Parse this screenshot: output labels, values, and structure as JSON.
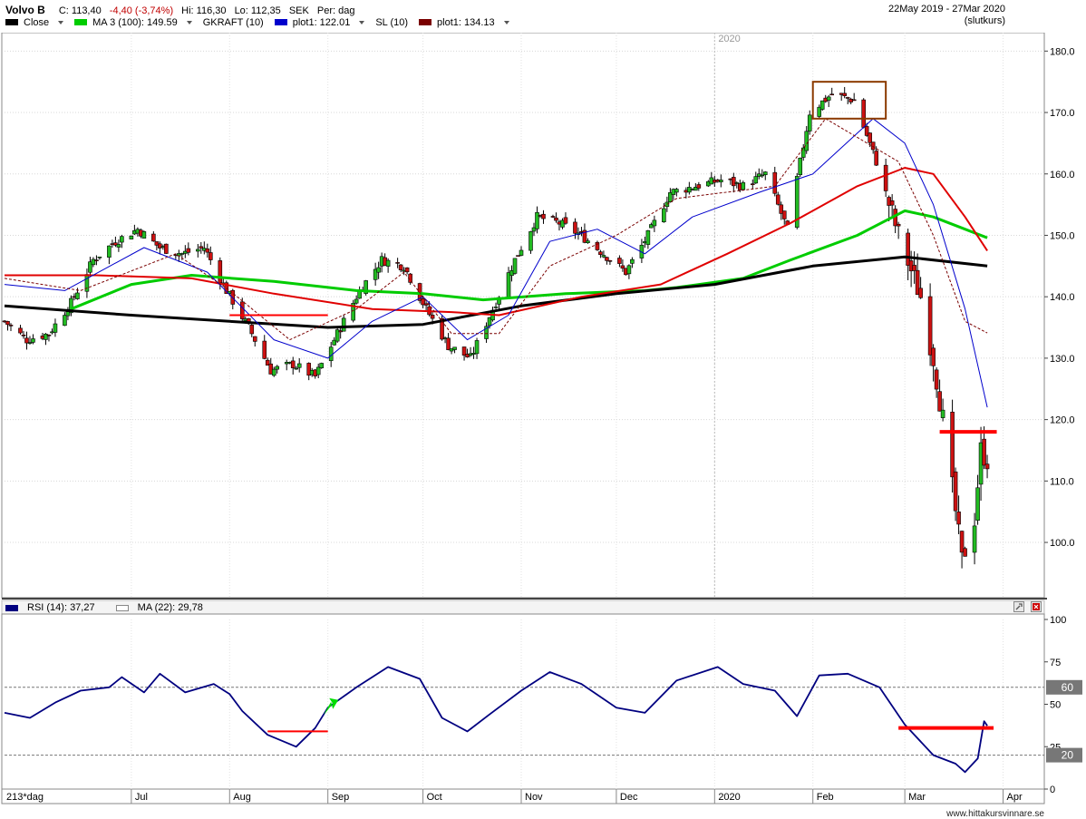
{
  "header": {
    "symbol": "Volvo B",
    "close": "C: 113,40",
    "change": "-4,40 (-3,74%)",
    "hi": "Hi: 116,30",
    "lo": "Lo: 112,35",
    "currency": "SEK",
    "period": "Per: dag",
    "daterange": "22May 2019 - 27Mar 2020",
    "pricetype": "(slutkurs)"
  },
  "legend": [
    {
      "label": "Close",
      "color": "#000000",
      "dropdown": true
    },
    {
      "label": "MA 3 (100): 149.59",
      "color": "#00cc00",
      "dropdown": true
    },
    {
      "label": "GKRAFT (10)",
      "color": "",
      "dropdown": false
    },
    {
      "label": "plot1: 122.01",
      "color": "#0000cc",
      "dropdown": true
    },
    {
      "label": "SL (10)",
      "color": "",
      "dropdown": false
    },
    {
      "label": "plot1: 134.13",
      "color": "#7a0000",
      "dropdown": true
    }
  ],
  "rsi_panel": {
    "label": "RSI (14): 37,27",
    "ma_label": "MA (22): 29,78",
    "line_color": "#000080",
    "levels": [
      60,
      20
    ]
  },
  "footer": {
    "bars": "213*dag",
    "watermark": "www.hittakursvinnare.se",
    "year_marker": "2020"
  },
  "chart_data": [
    {
      "type": "candlestick",
      "ylim": [
        91,
        183
      ],
      "yticks": [
        "100.0",
        "110.0",
        "120.0",
        "130.0",
        "140.0",
        "150.0",
        "160.0",
        "170.0",
        "180.0"
      ],
      "ytick_values": [
        100,
        110,
        120,
        130,
        140,
        150,
        160,
        170,
        180
      ],
      "xticks": [
        {
          "label": "Jul",
          "date": "2019-07-01"
        },
        {
          "label": "Aug",
          "date": "2019-08-01"
        },
        {
          "label": "Sep",
          "date": "2019-09-01"
        },
        {
          "label": "Oct",
          "date": "2019-10-01"
        },
        {
          "label": "Nov",
          "date": "2019-11-01"
        },
        {
          "label": "Dec",
          "date": "2019-12-01"
        },
        {
          "label": "2020",
          "date": "2020-01-01"
        },
        {
          "label": "Feb",
          "date": "2020-02-01"
        },
        {
          "label": "Mar",
          "date": "2020-03-01"
        },
        {
          "label": "Apr",
          "date": "2020-04-01"
        }
      ],
      "x_start": "2019-05-22",
      "x_end": "2020-04-14",
      "close_path": [
        [
          "2019-05-22",
          136
        ],
        [
          "2019-05-29",
          133
        ],
        [
          "2019-06-05",
          134
        ],
        [
          "2019-06-12",
          139
        ],
        [
          "2019-06-19",
          146
        ],
        [
          "2019-06-26",
          149
        ],
        [
          "2019-07-03",
          151
        ],
        [
          "2019-07-10",
          148
        ],
        [
          "2019-07-17",
          147
        ],
        [
          "2019-07-24",
          148
        ],
        [
          "2019-07-31",
          141
        ],
        [
          "2019-08-07",
          135
        ],
        [
          "2019-08-14",
          128
        ],
        [
          "2019-08-21",
          129
        ],
        [
          "2019-08-28",
          127
        ],
        [
          "2019-09-04",
          134
        ],
        [
          "2019-09-11",
          141
        ],
        [
          "2019-09-18",
          146
        ],
        [
          "2019-09-25",
          145
        ],
        [
          "2019-10-02",
          138
        ],
        [
          "2019-10-09",
          132
        ],
        [
          "2019-10-16",
          130
        ],
        [
          "2019-10-23",
          138
        ],
        [
          "2019-10-30",
          146
        ],
        [
          "2019-11-06",
          153
        ],
        [
          "2019-11-13",
          152
        ],
        [
          "2019-11-20",
          150
        ],
        [
          "2019-11-27",
          147
        ],
        [
          "2019-12-04",
          144
        ],
        [
          "2019-12-11",
          150
        ],
        [
          "2019-12-18",
          157
        ],
        [
          "2020-01-03",
          159
        ],
        [
          "2020-01-10",
          158
        ],
        [
          "2020-01-17",
          160
        ],
        [
          "2020-01-24",
          151
        ],
        [
          "2020-01-31",
          170
        ],
        [
          "2020-02-07",
          173
        ],
        [
          "2020-02-14",
          172
        ],
        [
          "2020-02-21",
          162
        ],
        [
          "2020-02-28",
          150
        ],
        [
          "2020-03-06",
          140
        ],
        [
          "2020-03-10",
          130
        ],
        [
          "2020-03-13",
          120
        ],
        [
          "2020-03-17",
          105
        ],
        [
          "2020-03-19",
          97
        ],
        [
          "2020-03-23",
          104
        ],
        [
          "2020-03-25",
          115
        ],
        [
          "2020-03-27",
          113.4
        ]
      ],
      "series": [
        {
          "name": "MA 3 (100): 149.59",
          "color": "#00cc00",
          "values": [
            [
              "2019-06-12",
              138
            ],
            [
              "2019-07-01",
              142
            ],
            [
              "2019-07-20",
              143.5
            ],
            [
              "2019-08-15",
              142.5
            ],
            [
              "2019-09-10",
              141
            ],
            [
              "2019-10-01",
              140.5
            ],
            [
              "2019-10-20",
              139.5
            ],
            [
              "2019-11-15",
              140.5
            ],
            [
              "2019-12-10",
              141
            ],
            [
              "2019-12-20",
              141.5
            ],
            [
              "2020-01-10",
              143
            ],
            [
              "2020-01-25",
              146
            ],
            [
              "2020-02-15",
              150
            ],
            [
              "2020-03-01",
              154
            ],
            [
              "2020-03-10",
              153
            ],
            [
              "2020-03-20",
              151
            ],
            [
              "2020-03-27",
              149.6
            ]
          ]
        },
        {
          "name": "",
          "color": "#000000",
          "values": [
            [
              "2019-05-22",
              138.5
            ],
            [
              "2019-07-01",
              137
            ],
            [
              "2019-08-01",
              136
            ],
            [
              "2019-09-01",
              135
            ],
            [
              "2019-10-01",
              135.5
            ],
            [
              "2019-11-01",
              138.5
            ],
            [
              "2019-12-01",
              140.5
            ],
            [
              "2020-01-01",
              142
            ],
            [
              "2020-02-01",
              145
            ],
            [
              "2020-03-01",
              146.5
            ],
            [
              "2020-03-27",
              145
            ]
          ]
        },
        {
          "name": "",
          "color": "#e00000",
          "values": [
            [
              "2019-05-22",
              143.5
            ],
            [
              "2019-06-20",
              143.5
            ],
            [
              "2019-07-20",
              143
            ],
            [
              "2019-08-15",
              140.5
            ],
            [
              "2019-09-15",
              138
            ],
            [
              "2019-10-10",
              137.5
            ],
            [
              "2019-10-25",
              137
            ],
            [
              "2019-11-20",
              140
            ],
            [
              "2019-12-15",
              142
            ],
            [
              "2020-01-05",
              147
            ],
            [
              "2020-01-25",
              152
            ],
            [
              "2020-02-15",
              158
            ],
            [
              "2020-03-01",
              161
            ],
            [
              "2020-03-10",
              160
            ],
            [
              "2020-03-20",
              153
            ],
            [
              "2020-03-27",
              147.5
            ]
          ]
        },
        {
          "name": "plot1: 122.01",
          "color": "#0000cc",
          "values": [
            [
              "2019-05-22",
              142
            ],
            [
              "2019-06-10",
              141
            ],
            [
              "2019-07-05",
              148
            ],
            [
              "2019-07-25",
              144
            ],
            [
              "2019-08-15",
              133
            ],
            [
              "2019-09-01",
              130
            ],
            [
              "2019-09-15",
              136
            ],
            [
              "2019-10-01",
              140
            ],
            [
              "2019-10-15",
              133
            ],
            [
              "2019-10-28",
              137
            ],
            [
              "2019-11-10",
              149
            ],
            [
              "2019-11-25",
              151
            ],
            [
              "2019-12-10",
              147
            ],
            [
              "2019-12-25",
              153
            ],
            [
              "2020-01-15",
              157
            ],
            [
              "2020-02-01",
              160
            ],
            [
              "2020-02-20",
              169
            ],
            [
              "2020-03-01",
              165
            ],
            [
              "2020-03-10",
              155
            ],
            [
              "2020-03-20",
              138
            ],
            [
              "2020-03-27",
              122
            ]
          ]
        },
        {
          "name": "plot1: 134.13",
          "color": "#7a0000",
          "dashed": true,
          "values": [
            [
              "2019-05-22",
              143
            ],
            [
              "2019-06-15",
              141
            ],
            [
              "2019-07-15",
              147
            ],
            [
              "2019-08-01",
              141
            ],
            [
              "2019-08-20",
              133
            ],
            [
              "2019-09-10",
              138
            ],
            [
              "2019-09-25",
              144
            ],
            [
              "2019-10-10",
              134
            ],
            [
              "2019-10-25",
              134
            ],
            [
              "2019-11-10",
              145
            ],
            [
              "2019-12-01",
              150
            ],
            [
              "2019-12-20",
              156
            ],
            [
              "2020-01-20",
              158
            ],
            [
              "2020-02-05",
              169
            ],
            [
              "2020-02-28",
              162
            ],
            [
              "2020-03-10",
              150
            ],
            [
              "2020-03-20",
              136
            ],
            [
              "2020-03-27",
              134.1
            ]
          ]
        }
      ],
      "annotations": [
        {
          "type": "box",
          "x1": "2020-02-01",
          "x2": "2020-02-24",
          "y1": 169,
          "y2": 175,
          "color": "#8b3a00"
        },
        {
          "type": "hline",
          "x1": "2020-03-12",
          "x2": "2020-03-30",
          "y": 118,
          "color": "#ff0000"
        },
        {
          "type": "hline",
          "x1": "2019-08-01",
          "x2": "2019-09-01",
          "y": 137,
          "color": "#ff0000"
        }
      ]
    },
    {
      "type": "line",
      "ylim": [
        0,
        100
      ],
      "yticks": [
        "0",
        "25",
        "50",
        "75",
        "100"
      ],
      "ytick_values": [
        0,
        25,
        50,
        75,
        100
      ],
      "levels": [
        60,
        20
      ],
      "series": [
        {
          "name": "RSI (14): 37,27",
          "color": "#000080",
          "values": [
            [
              "2019-05-22",
              45
            ],
            [
              "2019-05-30",
              42
            ],
            [
              "2019-06-07",
              51
            ],
            [
              "2019-06-15",
              58
            ],
            [
              "2019-06-24",
              60
            ],
            [
              "2019-06-28",
              66
            ],
            [
              "2019-07-05",
              57
            ],
            [
              "2019-07-10",
              68
            ],
            [
              "2019-07-18",
              57
            ],
            [
              "2019-07-27",
              62
            ],
            [
              "2019-08-01",
              56
            ],
            [
              "2019-08-05",
              46
            ],
            [
              "2019-08-13",
              32
            ],
            [
              "2019-08-22",
              25
            ],
            [
              "2019-08-28",
              36
            ],
            [
              "2019-09-01",
              48
            ],
            [
              "2019-09-10",
              60
            ],
            [
              "2019-09-20",
              72
            ],
            [
              "2019-09-30",
              65
            ],
            [
              "2019-10-07",
              42
            ],
            [
              "2019-10-15",
              34
            ],
            [
              "2019-10-22",
              44
            ],
            [
              "2019-11-01",
              58
            ],
            [
              "2019-11-10",
              69
            ],
            [
              "2019-11-20",
              62
            ],
            [
              "2019-12-01",
              48
            ],
            [
              "2019-12-10",
              45
            ],
            [
              "2019-12-20",
              64
            ],
            [
              "2020-01-02",
              72
            ],
            [
              "2020-01-10",
              62
            ],
            [
              "2020-01-20",
              58
            ],
            [
              "2020-01-27",
              43
            ],
            [
              "2020-02-03",
              67
            ],
            [
              "2020-02-12",
              68
            ],
            [
              "2020-02-22",
              60
            ],
            [
              "2020-03-01",
              38
            ],
            [
              "2020-03-10",
              20
            ],
            [
              "2020-03-17",
              15
            ],
            [
              "2020-03-20",
              10
            ],
            [
              "2020-03-24",
              18
            ],
            [
              "2020-03-26",
              40
            ],
            [
              "2020-03-27",
              37.3
            ]
          ]
        }
      ],
      "annotations": [
        {
          "type": "hline",
          "x1": "2019-08-13",
          "x2": "2019-09-01",
          "y": 34,
          "color": "#ff0000"
        },
        {
          "type": "hline",
          "x1": "2020-02-28",
          "x2": "2020-03-29",
          "y": 36,
          "color": "#ff0000"
        },
        {
          "type": "arrow",
          "x": "2019-09-02",
          "y": 44,
          "color": "#00dd00"
        }
      ]
    }
  ]
}
